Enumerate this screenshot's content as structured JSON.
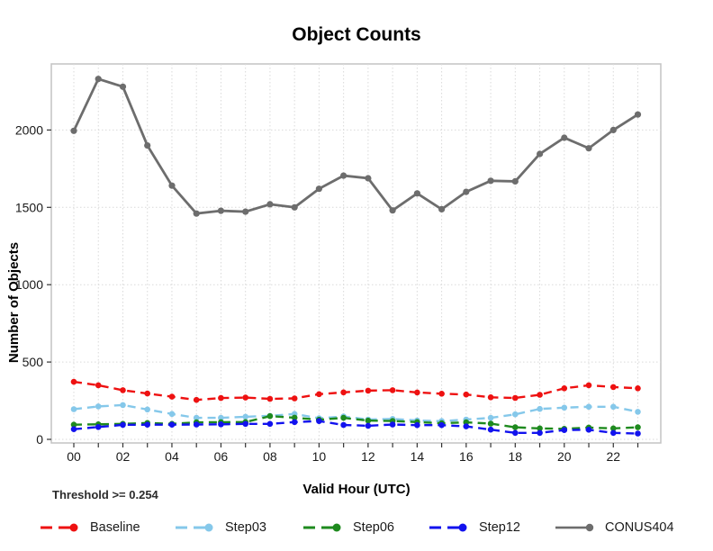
{
  "title": "Object Counts",
  "threshold_label": "Threshold >= 0.254",
  "chart_data": {
    "type": "line",
    "title": "Object Counts",
    "xlabel": "Valid Hour (UTC)",
    "ylabel": "Number of Objects",
    "categories": [
      "00",
      "01",
      "02",
      "03",
      "04",
      "05",
      "06",
      "07",
      "08",
      "09",
      "10",
      "11",
      "12",
      "13",
      "14",
      "15",
      "16",
      "17",
      "18",
      "19",
      "20",
      "21",
      "22",
      "23"
    ],
    "x_tick_label_every": 2,
    "yticks": [
      0,
      500,
      1000,
      1500,
      2000
    ],
    "ylim": [
      0,
      2430
    ],
    "grid": true,
    "legend_position": "bottom",
    "grid_color": "#d9d9d9",
    "panel_border_color": "#c3c3c3",
    "tick_text_color": "#1a1a1a",
    "series": [
      {
        "name": "Baseline",
        "color": "#ee1111",
        "style": "dashed",
        "values": [
          372,
          350,
          318,
          296,
          276,
          255,
          267,
          270,
          262,
          265,
          292,
          304,
          315,
          318,
          303,
          295,
          290,
          272,
          268,
          288,
          330,
          350,
          338,
          330
        ]
      },
      {
        "name": "Step03",
        "color": "#85c8ea",
        "style": "dashed",
        "values": [
          195,
          213,
          222,
          193,
          164,
          139,
          139,
          146,
          152,
          164,
          136,
          148,
          128,
          132,
          122,
          118,
          128,
          139,
          162,
          197,
          205,
          211,
          211,
          178
        ]
      },
      {
        "name": "Step06",
        "color": "#1e8a1e",
        "style": "dashed",
        "values": [
          95,
          97,
          100,
          106,
          100,
          110,
          111,
          112,
          150,
          140,
          127,
          139,
          121,
          119,
          112,
          104,
          110,
          102,
          78,
          71,
          68,
          76,
          71,
          78
        ]
      },
      {
        "name": "Step12",
        "color": "#1212ee",
        "style": "dashed",
        "values": [
          66,
          80,
          94,
          95,
          95,
          96,
          97,
          100,
          100,
          112,
          118,
          93,
          88,
          96,
          92,
          92,
          84,
          63,
          42,
          42,
          60,
          62,
          42,
          38
        ]
      },
      {
        "name": "CONUS404",
        "color": "#6d6d6d",
        "style": "solid",
        "values": [
          1995,
          2330,
          2280,
          1900,
          1640,
          1460,
          1478,
          1472,
          1520,
          1500,
          1620,
          1705,
          1688,
          1480,
          1590,
          1488,
          1600,
          1672,
          1668,
          1845,
          1950,
          1882,
          2000,
          2100
        ]
      }
    ]
  }
}
